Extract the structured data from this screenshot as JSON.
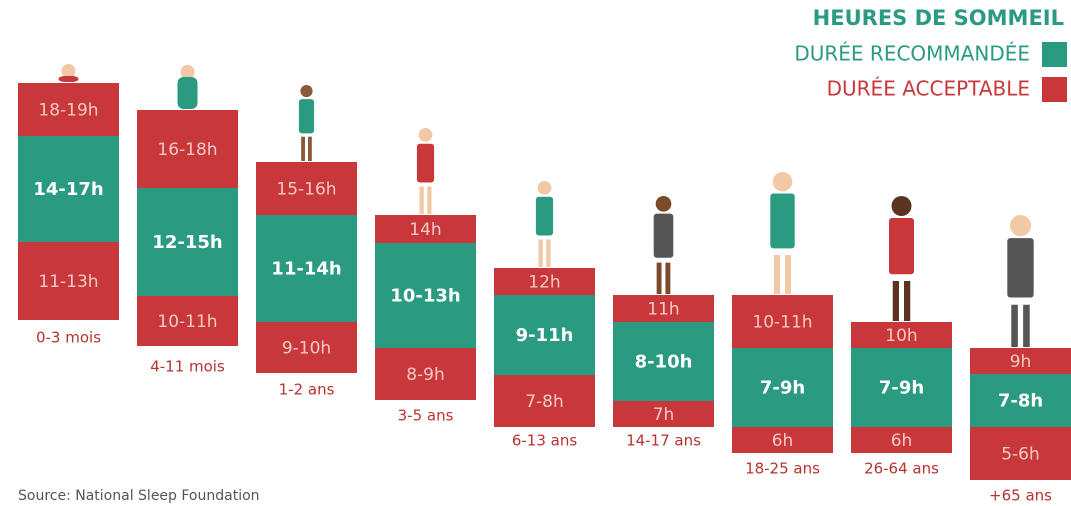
{
  "title": "HEURES DE SOMMEIL",
  "legend": {
    "recommended": "DURÉE RECOMMANDÉE",
    "acceptable": "DURÉE ACCEPTABLE"
  },
  "groups": [
    {
      "age": "0-3 mois",
      "upper": "18-19h",
      "recommended": "14-17h",
      "lower": "11-13h"
    },
    {
      "age": "4-11 mois",
      "upper": "16-18h",
      "recommended": "12-15h",
      "lower": "10-11h"
    },
    {
      "age": "1-2 ans",
      "upper": "15-16h",
      "recommended": "11-14h",
      "lower": "9-10h"
    },
    {
      "age": "3-5 ans",
      "upper": "14h",
      "recommended": "10-13h",
      "lower": "8-9h"
    },
    {
      "age": "6-13 ans",
      "upper": "12h",
      "recommended": "9-11h",
      "lower": "7-8h"
    },
    {
      "age": "14-17 ans",
      "upper": "11h",
      "recommended": "8-10h",
      "lower": "7h"
    },
    {
      "age": "18-25 ans",
      "upper": "10-11h",
      "recommended": "7-9h",
      "lower": "6h"
    },
    {
      "age": "26-64 ans",
      "upper": "10h",
      "recommended": "7-9h",
      "lower": "6h"
    },
    {
      "age": "+65 ans",
      "upper": "9h",
      "recommended": "7-8h",
      "lower": "5-6h"
    }
  ],
  "source": "Source: National Sleep Foundation"
}
